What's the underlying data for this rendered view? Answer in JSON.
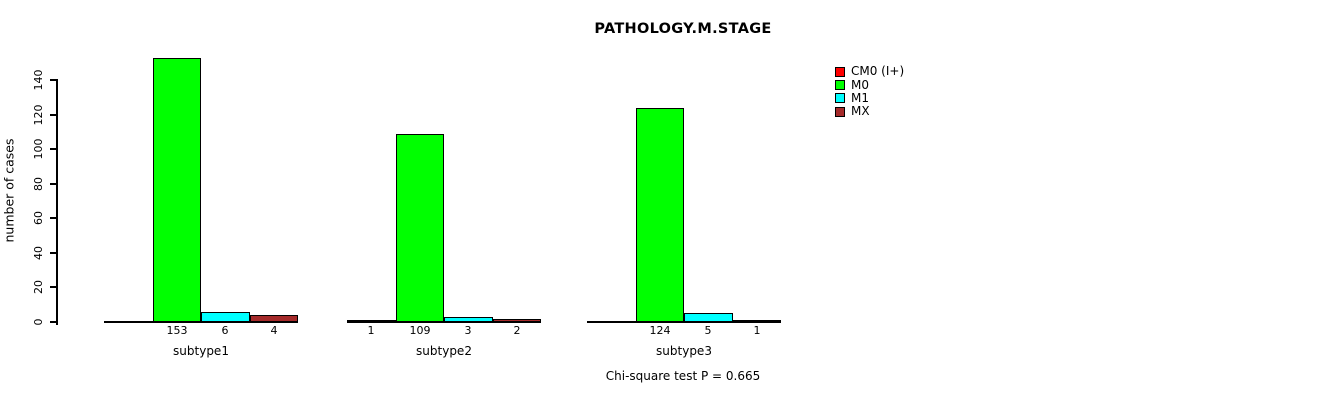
{
  "chart_data": {
    "type": "bar",
    "title": "PATHOLOGY.M.STAGE",
    "ylabel": "number of cases",
    "xlabel": "",
    "footnote": "Chi-square test P = 0.665",
    "categories": [
      "subtype1",
      "subtype2",
      "subtype3"
    ],
    "series": [
      {
        "name": "CM0 (I+)",
        "color": "#ff0000",
        "values": [
          0,
          1,
          0
        ]
      },
      {
        "name": "M0",
        "color": "#00ff00",
        "values": [
          153,
          109,
          124
        ]
      },
      {
        "name": "M1",
        "color": "#00ffff",
        "values": [
          6,
          3,
          5
        ]
      },
      {
        "name": "MX",
        "color": "#a52a2a",
        "values": [
          4,
          2,
          1
        ]
      }
    ],
    "yticks": [
      0,
      20,
      40,
      60,
      80,
      100,
      120,
      140
    ],
    "ylim": [
      0,
      140
    ],
    "grid": false,
    "value_labels_visible": true,
    "value_labels_note": "counts shown under each bar; zero counts have no bar and no label",
    "legend_position": "top-right",
    "background_color": "#ffffff",
    "axis_color": "#000000"
  }
}
